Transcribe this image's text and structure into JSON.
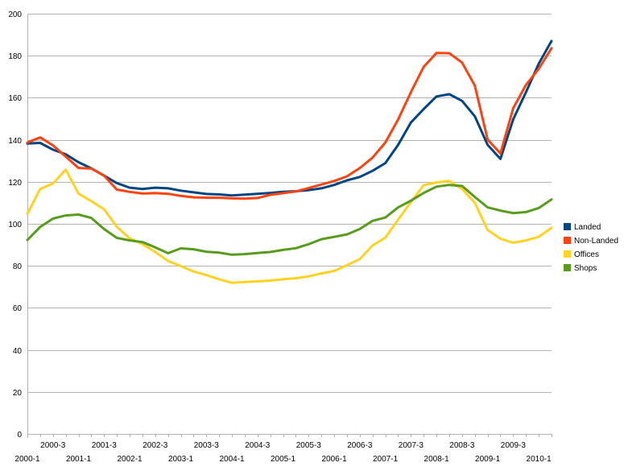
{
  "chart_data": {
    "type": "line",
    "title": "",
    "xlabel": "",
    "ylabel": "",
    "ylim": [
      0,
      200
    ],
    "yticks": [
      0,
      20,
      40,
      60,
      80,
      100,
      120,
      140,
      160,
      180,
      200
    ],
    "grid": true,
    "legend_position": "right",
    "categories": [
      "2000-1",
      "2000-2",
      "2000-3",
      "2000-4",
      "2001-1",
      "2001-2",
      "2001-3",
      "2001-4",
      "2002-1",
      "2002-2",
      "2002-3",
      "2002-4",
      "2003-1",
      "2003-2",
      "2003-3",
      "2003-4",
      "2004-1",
      "2004-2",
      "2004-3",
      "2004-4",
      "2005-1",
      "2005-2",
      "2005-3",
      "2005-4",
      "2006-1",
      "2006-2",
      "2006-3",
      "2006-4",
      "2007-1",
      "2007-2",
      "2007-3",
      "2007-4",
      "2008-1",
      "2008-2",
      "2008-3",
      "2008-4",
      "2009-1",
      "2009-2",
      "2009-3",
      "2009-4",
      "2010-1",
      "2010-2"
    ],
    "tick_labels_row1": [
      "2000-3",
      "2001-3",
      "2002-3",
      "2003-3",
      "2004-3",
      "2005-3",
      "2006-3",
      "2007-3",
      "2008-3",
      "2009-3"
    ],
    "tick_labels_row2": [
      "2000-1",
      "2001-1",
      "2002-1",
      "2003-1",
      "2004-1",
      "2005-1",
      "2006-1",
      "2007-1",
      "2008-1",
      "2009-1",
      "2010-1"
    ],
    "series": [
      {
        "name": "Landed",
        "color": "#004586",
        "values": [
          138.2,
          138.5,
          135.3,
          133.1,
          129.3,
          126.4,
          122.9,
          119.4,
          117.2,
          116.6,
          117.2,
          116.9,
          115.8,
          115.0,
          114.2,
          114.0,
          113.5,
          113.9,
          114.3,
          114.7,
          115.2,
          115.5,
          116.0,
          116.9,
          118.5,
          120.7,
          122.3,
          125.2,
          128.9,
          137.6,
          148.2,
          154.6,
          160.6,
          161.7,
          158.5,
          151.2,
          137.6,
          130.9,
          149.7,
          162.6,
          176.2,
          187.0
        ]
      },
      {
        "name": "Non-Landed",
        "color": "#ff420e",
        "values": [
          138.7,
          141.1,
          137.3,
          132.0,
          126.6,
          126.3,
          122.9,
          116.3,
          115.2,
          114.4,
          114.6,
          114.3,
          113.3,
          112.6,
          112.4,
          112.4,
          112.1,
          112.0,
          112.3,
          113.8,
          114.6,
          115.4,
          117.0,
          118.7,
          120.4,
          122.6,
          126.5,
          131.5,
          138.7,
          149.7,
          162.6,
          174.7,
          181.3,
          181.2,
          176.7,
          165.8,
          140.1,
          133.5,
          155.0,
          166.1,
          173.8,
          183.6
        ]
      },
      {
        "name": "Offices",
        "color": "#ffd320",
        "values": [
          104.8,
          116.6,
          119.2,
          125.8,
          114.4,
          110.8,
          106.9,
          98.6,
          93.1,
          90.3,
          86.6,
          82.3,
          79.9,
          77.3,
          75.6,
          73.6,
          71.9,
          72.3,
          72.6,
          73.0,
          73.6,
          74.1,
          75.0,
          76.4,
          77.6,
          80.3,
          83.2,
          89.7,
          93.4,
          102.0,
          110.3,
          118.4,
          119.7,
          120.4,
          116.6,
          110.0,
          97.0,
          92.9,
          91.0,
          92.1,
          93.8,
          98.1
        ]
      },
      {
        "name": "Shops",
        "color": "#579d1c",
        "values": [
          92.3,
          98.5,
          102.5,
          104.0,
          104.4,
          102.8,
          97.5,
          93.3,
          92.1,
          91.3,
          88.8,
          86.0,
          88.3,
          87.9,
          86.7,
          86.3,
          85.3,
          85.6,
          86.1,
          86.6,
          87.6,
          88.4,
          90.3,
          92.7,
          93.8,
          95.0,
          97.5,
          101.4,
          103.0,
          107.8,
          111.0,
          114.7,
          117.7,
          118.5,
          118.0,
          112.8,
          107.8,
          106.3,
          105.1,
          105.6,
          107.5,
          111.6
        ]
      }
    ]
  }
}
